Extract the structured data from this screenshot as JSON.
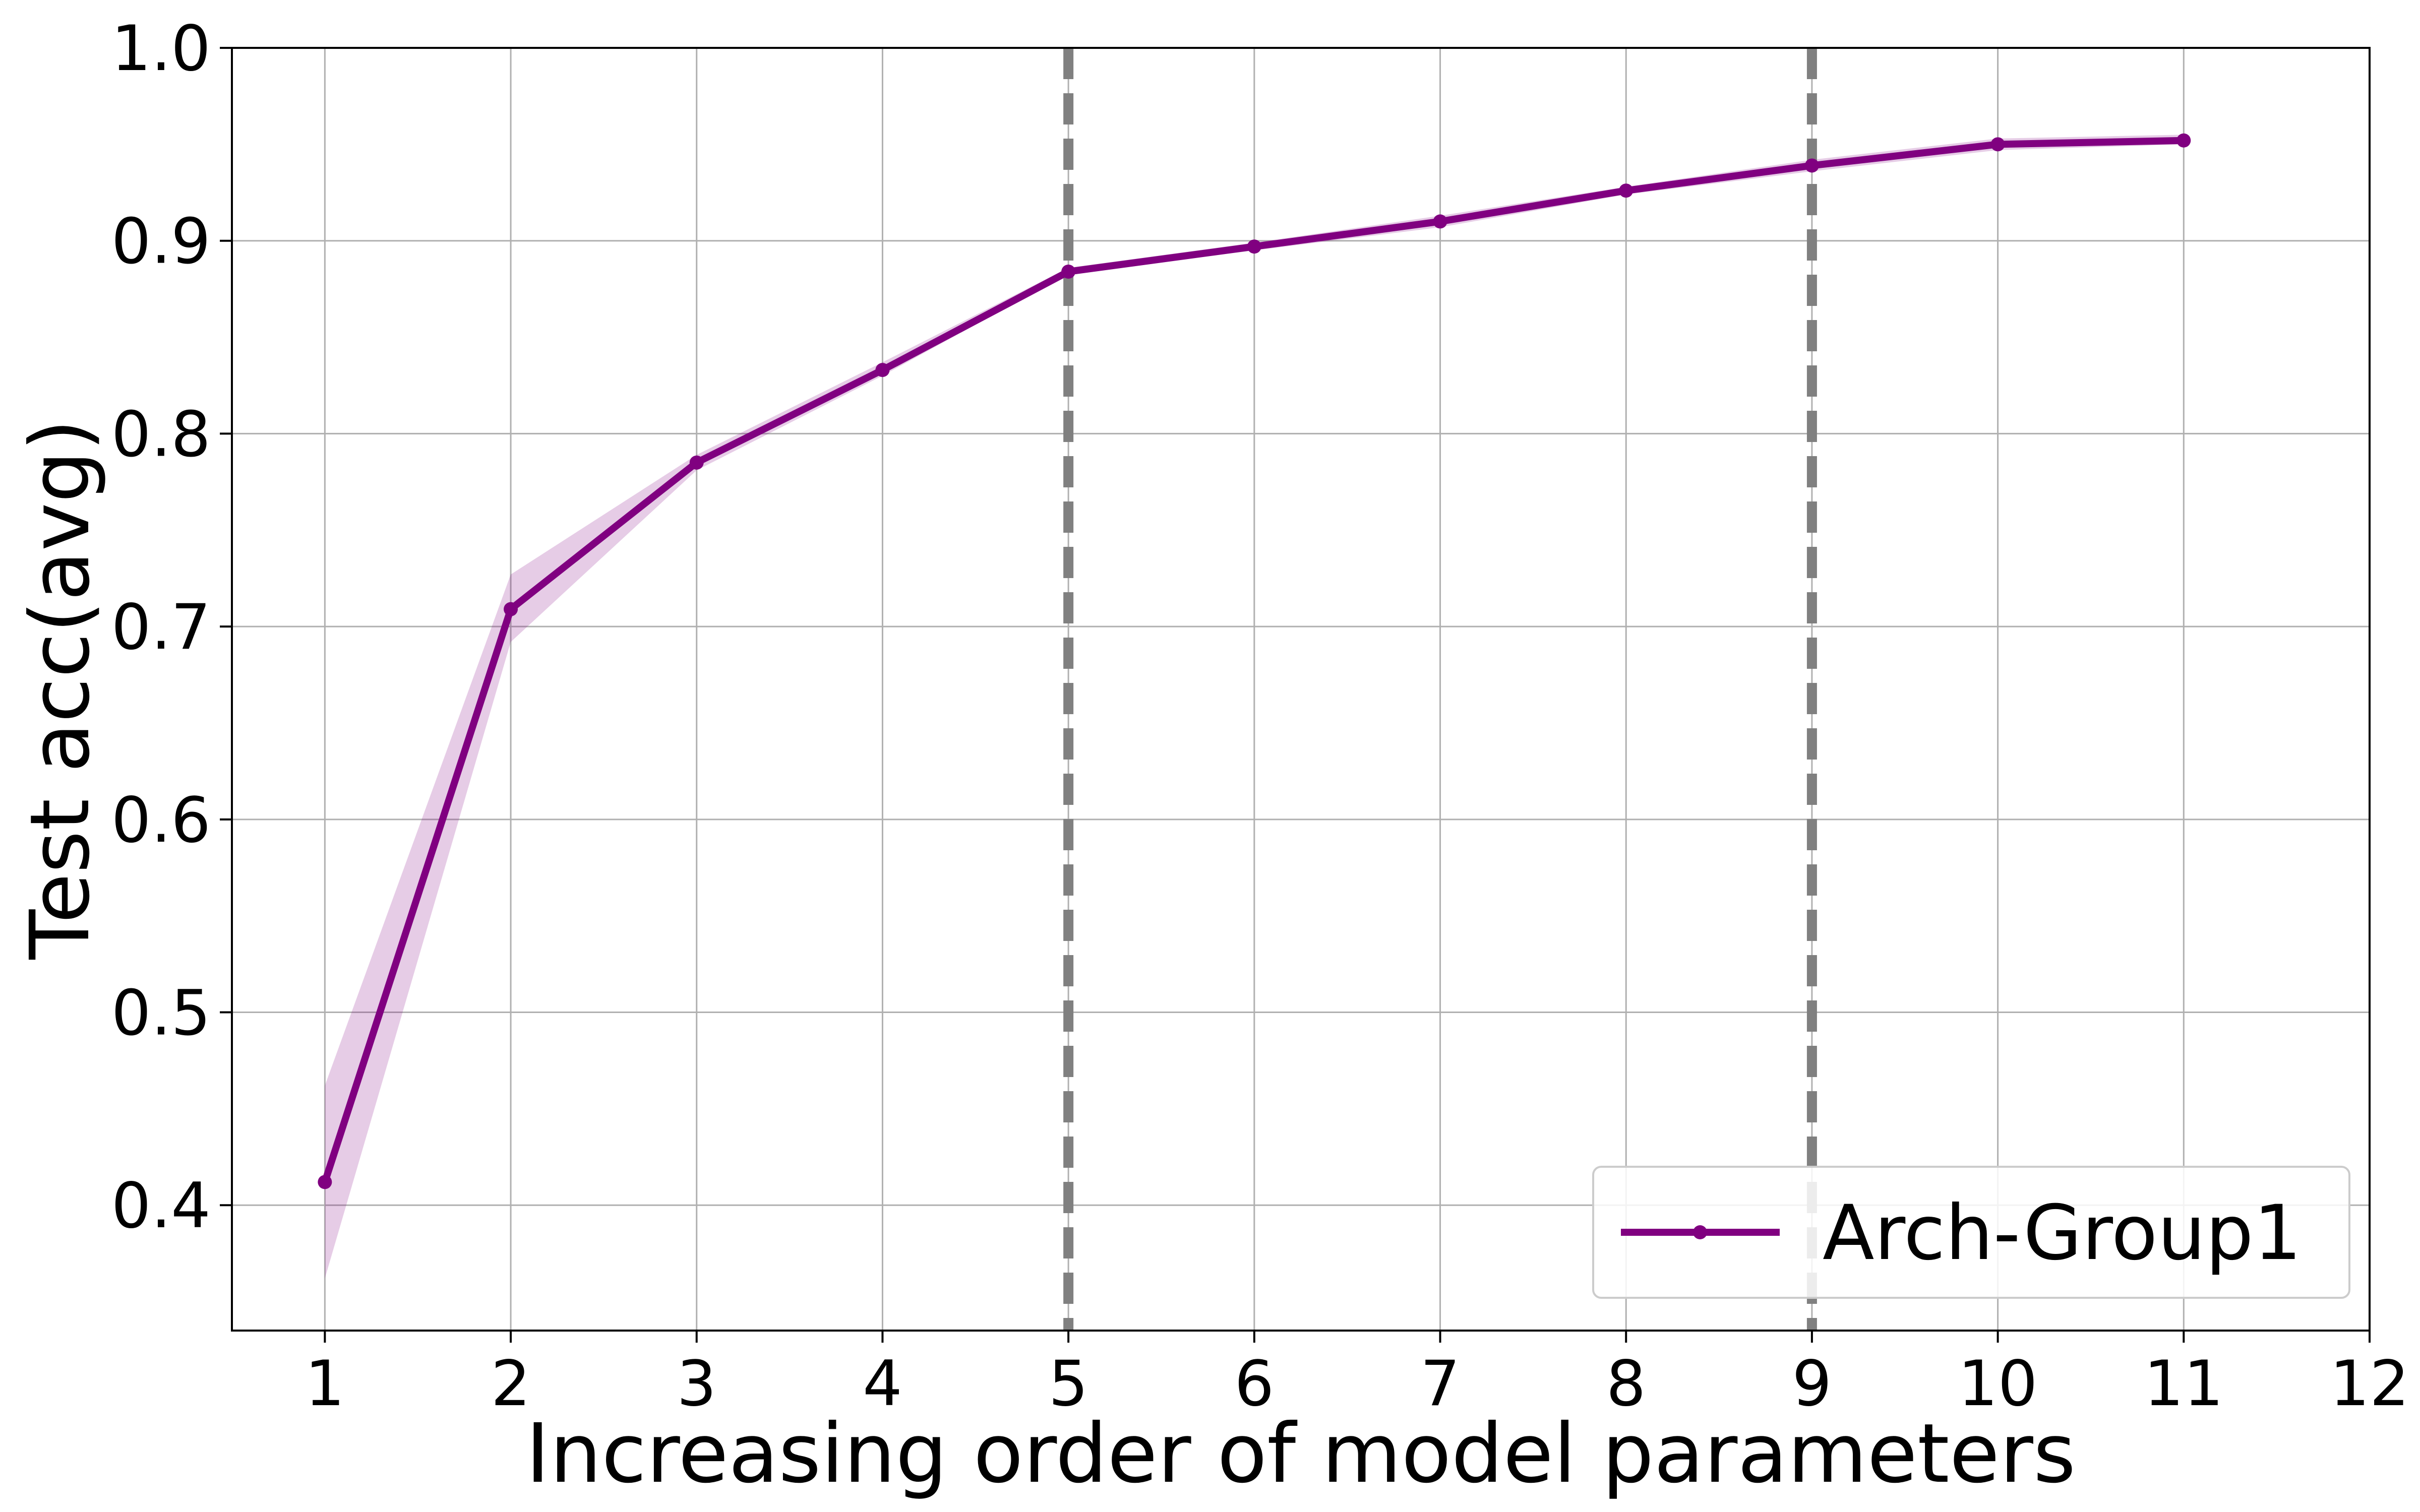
{
  "chart_data": {
    "type": "line",
    "title": "",
    "xlabel": "Increasing order of model parameters",
    "ylabel": "Test acc(avg)",
    "xlim": [
      0.5,
      12
    ],
    "ylim": [
      0.335,
      1.0
    ],
    "xticks": [
      1,
      2,
      3,
      4,
      5,
      6,
      7,
      8,
      9,
      10,
      11,
      12
    ],
    "yticks": [
      0.4,
      0.5,
      0.6,
      0.7,
      0.8,
      0.9,
      1.0
    ],
    "ytick_labels": [
      "0.4",
      "0.5",
      "0.6",
      "0.7",
      "0.8",
      "0.9",
      "1.0"
    ],
    "grid": true,
    "legend_position": "bottom-right",
    "series": [
      {
        "name": "Arch-Group1",
        "color": "#800080",
        "x": [
          1,
          2,
          3,
          4,
          5,
          6,
          7,
          8,
          9,
          10,
          11
        ],
        "values": [
          0.412,
          0.709,
          0.785,
          0.833,
          0.884,
          0.897,
          0.91,
          0.926,
          0.939,
          0.95,
          0.952
        ],
        "band_lower": [
          0.362,
          0.692,
          0.781,
          0.83,
          0.883,
          0.895,
          0.907,
          0.924,
          0.936,
          0.947,
          0.95
        ],
        "band_upper": [
          0.462,
          0.727,
          0.789,
          0.837,
          0.886,
          0.899,
          0.913,
          0.928,
          0.942,
          0.953,
          0.955
        ]
      }
    ],
    "vlines": [
      {
        "x": 5,
        "color": "#808080",
        "style": "dashed"
      },
      {
        "x": 9,
        "color": "#808080",
        "style": "dashed"
      }
    ]
  }
}
